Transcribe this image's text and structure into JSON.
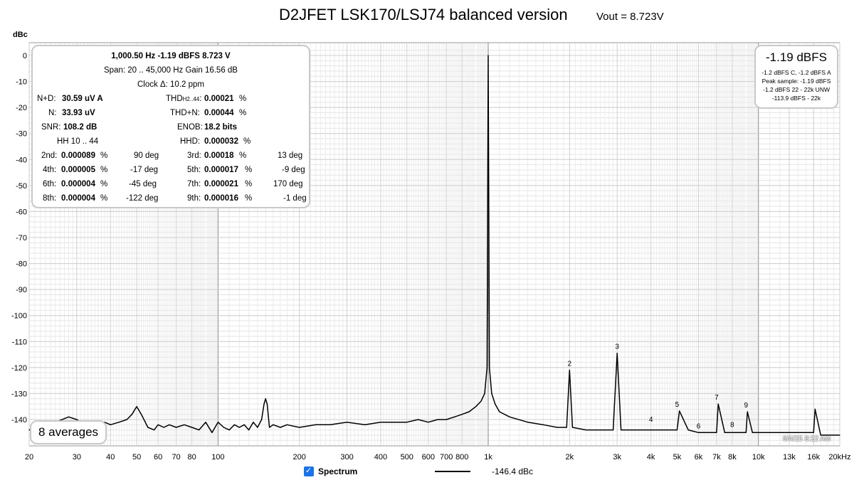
{
  "chart_data": {
    "type": "line",
    "title": "D2JFET LSK170/LSJ74 balanced version",
    "subtitle": "Vout = 8.723V",
    "ylabel": "dBc",
    "xlabel": "",
    "xscale": "log",
    "xlim": [
      20,
      20000
    ],
    "ylim": [
      -148,
      3
    ],
    "grid": true,
    "x_ticks": [
      {
        "value": 20,
        "label": "20"
      },
      {
        "value": 30,
        "label": "30"
      },
      {
        "value": 40,
        "label": "40"
      },
      {
        "value": 50,
        "label": "50"
      },
      {
        "value": 60,
        "label": "60"
      },
      {
        "value": 70,
        "label": "70"
      },
      {
        "value": 80,
        "label": "80"
      },
      {
        "value": 100,
        "label": "100"
      },
      {
        "value": 200,
        "label": "200"
      },
      {
        "value": 300,
        "label": "300"
      },
      {
        "value": 400,
        "label": "400"
      },
      {
        "value": 500,
        "label": "500"
      },
      {
        "value": 600,
        "label": "600"
      },
      {
        "value": 700,
        "label": "700"
      },
      {
        "value": 800,
        "label": "800"
      },
      {
        "value": 1000,
        "label": "1k"
      },
      {
        "value": 2000,
        "label": "2k"
      },
      {
        "value": 3000,
        "label": "3k"
      },
      {
        "value": 4000,
        "label": "4k"
      },
      {
        "value": 5000,
        "label": "5k"
      },
      {
        "value": 6000,
        "label": "6k"
      },
      {
        "value": 7000,
        "label": "7k"
      },
      {
        "value": 8000,
        "label": "8k"
      },
      {
        "value": 10000,
        "label": "10k"
      },
      {
        "value": 13000,
        "label": "13k"
      },
      {
        "value": 16000,
        "label": "16k"
      },
      {
        "value": 20000,
        "label": "20kHz"
      }
    ],
    "y_ticks": [
      0,
      -10,
      -20,
      -30,
      -40,
      -50,
      -60,
      -70,
      -80,
      -90,
      -100,
      -110,
      -120,
      -130,
      -140
    ],
    "series": [
      {
        "name": "Spectrum",
        "color": "#000000",
        "x": [
          20,
          22,
          25,
          28,
          30,
          32,
          35,
          38,
          40,
          43,
          46,
          48,
          50,
          52,
          55,
          58,
          60,
          63,
          66,
          70,
          75,
          80,
          85,
          90,
          95,
          100,
          105,
          110,
          115,
          120,
          125,
          130,
          135,
          140,
          145,
          148,
          150,
          152,
          155,
          160,
          170,
          180,
          200,
          230,
          260,
          300,
          350,
          400,
          450,
          500,
          550,
          600,
          650,
          700,
          750,
          800,
          850,
          900,
          940,
          970,
          990,
          1000,
          1010,
          1030,
          1060,
          1100,
          1200,
          1400,
          1600,
          1800,
          1950,
          2000,
          2050,
          2300,
          2600,
          2900,
          3000,
          3100,
          3500,
          4000,
          4500,
          5000,
          5100,
          5500,
          6000,
          6500,
          7000,
          7100,
          7500,
          8000,
          8500,
          9000,
          9100,
          9500,
          10000,
          11000,
          12000,
          13000,
          14000,
          15000,
          16000,
          16200,
          17000,
          18000,
          19000,
          20000
        ],
        "y": [
          -144,
          -143,
          -141,
          -139,
          -140,
          -142,
          -141,
          -141,
          -142,
          -141,
          -140,
          -138,
          -135,
          -138,
          -143,
          -144,
          -142,
          -143,
          -142,
          -143,
          -142,
          -143,
          -144,
          -141,
          -145,
          -141,
          -143,
          -144,
          -142,
          -143,
          -142,
          -144,
          -141,
          -143,
          -140,
          -134,
          -132,
          -134,
          -143,
          -142,
          -143,
          -142,
          -143,
          -142,
          -142,
          -141,
          -142,
          -141,
          -141,
          -141,
          -140,
          -141,
          -140,
          -140,
          -139,
          -138,
          -137,
          -135,
          -133,
          -130,
          -120,
          0,
          -120,
          -130,
          -134,
          -137,
          -139,
          -141,
          -142,
          -143,
          -143,
          -121,
          -143,
          -144,
          -144,
          -144,
          -114.5,
          -144,
          -144,
          -144,
          -144,
          -144,
          -136.7,
          -144,
          -145,
          -145,
          -145,
          -134,
          -145,
          -145,
          -145,
          -145,
          -137,
          -145,
          -145,
          -145,
          -145,
          -145,
          -145,
          -145,
          -145,
          -136,
          -146,
          -146,
          -146,
          -146
        ]
      }
    ],
    "harmonic_markers": [
      {
        "label": "2",
        "x": 2000,
        "y": -121
      },
      {
        "label": "3",
        "x": 3000,
        "y": -114.5
      },
      {
        "label": "4",
        "x": 4000,
        "y": -142.5
      },
      {
        "label": "5",
        "x": 5000,
        "y": -136.7
      },
      {
        "label": "6",
        "x": 6000,
        "y": -145
      },
      {
        "label": "7",
        "x": 7000,
        "y": -134
      },
      {
        "label": "8",
        "x": 8000,
        "y": -144.5
      },
      {
        "label": "9",
        "x": 9000,
        "y": -137
      }
    ],
    "legend": {
      "position": "bottom",
      "entries": [
        {
          "name": "Spectrum",
          "value": "-146.4 dBc"
        }
      ]
    }
  },
  "stats_panel": {
    "fundamental": "1,000.50 Hz  -1.19 dBFS  8.723 V",
    "span": "Span: 20 .. 45,000 Hz   Gain 16.56 dB",
    "clock": "Clock Δ: 10.2 ppm",
    "nd_label": "N+D:",
    "nd_value": "30.59 uV A",
    "thd_label": "THD",
    "thd_sub": "H2..44",
    "thd_colon": ":",
    "thd_value": "0.00021",
    "thd_unit": "%",
    "n_label": "N:",
    "n_value": "33.93 uV",
    "thdn_label": "THD+N:",
    "thdn_value": "0.00044",
    "thdn_unit": "%",
    "snr_label": "SNR:",
    "snr_value": "108.2 dB",
    "enob_label": "ENOB:",
    "enob_value": "18.2 bits",
    "hh_label": "HH 10 .. 44",
    "hhd_label": "HHD:",
    "hhd_value": "0.000032",
    "hhd_unit": "%",
    "harmonics": [
      {
        "label": "2nd:",
        "value": "0.000089",
        "unit": "%",
        "phase": "90 deg"
      },
      {
        "label": "3rd:",
        "value": "0.00018",
        "unit": "%",
        "phase": "13 deg"
      },
      {
        "label": "4th:",
        "value": "0.000005",
        "unit": "%",
        "phase": "-17 deg"
      },
      {
        "label": "5th:",
        "value": "0.000017",
        "unit": "%",
        "phase": "-9 deg"
      },
      {
        "label": "6th:",
        "value": "0.000004",
        "unit": "%",
        "phase": "-45 deg"
      },
      {
        "label": "7th:",
        "value": "0.000021",
        "unit": "%",
        "phase": "170 deg"
      },
      {
        "label": "8th:",
        "value": "0.000004",
        "unit": "%",
        "phase": "-122 deg"
      },
      {
        "label": "9th:",
        "value": "0.000016",
        "unit": "%",
        "phase": "-1 deg"
      }
    ]
  },
  "level_panel": {
    "main": "-1.19 dBFS",
    "lines": [
      "-1.2 dBFS C, -1.2 dBFS A",
      "Peak sample: -1.19 dBFS",
      "-1.2 dBFS 22 - 22k UNW",
      "-113.9 dBFS - 22k"
    ]
  },
  "averages_label": "8 averages",
  "legend_label": "Spectrum",
  "legend_value": "-146.4 dBc",
  "timestamp": "6/4/25 8:22 AM",
  "checkbox_checked": true
}
